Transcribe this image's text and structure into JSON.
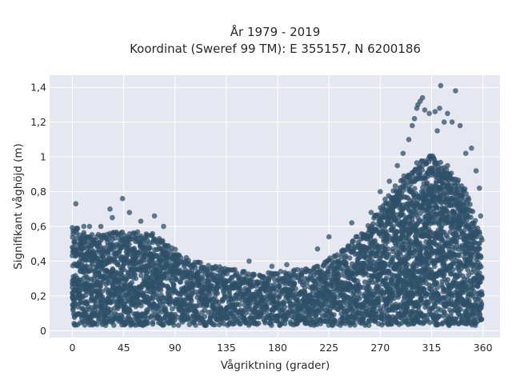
{
  "chart_data": {
    "type": "scatter",
    "title": "År 1979 - 2019",
    "subtitle": "Koordinat (Sweref 99 TM): E 355157, N 6200186",
    "xlabel": "Vågriktning (grader)",
    "ylabel": "Signifikant våghöjd (m)",
    "xlim": [
      -20,
      375
    ],
    "ylim": [
      -0.04,
      1.47
    ],
    "x_ticks": [
      0,
      45,
      90,
      135,
      180,
      225,
      270,
      315,
      360
    ],
    "x_tick_labels": [
      "0",
      "45",
      "90",
      "135",
      "180",
      "225",
      "270",
      "315",
      "360"
    ],
    "y_ticks": [
      0,
      0.2,
      0.4,
      0.6,
      0.8,
      1.0,
      1.2,
      1.4
    ],
    "y_tick_labels": [
      "0",
      "0,2",
      "0,4",
      "0,6",
      "0,8",
      "1",
      "1,2",
      "1,4"
    ],
    "grid": true,
    "background_color": "#e5e8f0",
    "grid_color": "#ffffff",
    "marker_color": "#2e5068",
    "dense_range": {
      "x": [
        0,
        360
      ],
      "y_min": 0.03
    },
    "upper_envelope": {
      "x": [
        0,
        20,
        45,
        70,
        90,
        100,
        135,
        160,
        180,
        210,
        240,
        260,
        280,
        300,
        315,
        330,
        345,
        360
      ],
      "y": [
        0.54,
        0.5,
        0.52,
        0.5,
        0.42,
        0.35,
        0.3,
        0.27,
        0.28,
        0.3,
        0.42,
        0.55,
        0.75,
        0.9,
        0.95,
        0.88,
        0.75,
        0.45
      ]
    },
    "outliers": [
      {
        "x": 3,
        "y": 0.73
      },
      {
        "x": 10,
        "y": 0.6
      },
      {
        "x": 15,
        "y": 0.6
      },
      {
        "x": 25,
        "y": 0.6
      },
      {
        "x": 33,
        "y": 0.7
      },
      {
        "x": 35,
        "y": 0.65
      },
      {
        "x": 44,
        "y": 0.76
      },
      {
        "x": 50,
        "y": 0.68
      },
      {
        "x": 60,
        "y": 0.63
      },
      {
        "x": 72,
        "y": 0.66
      },
      {
        "x": 80,
        "y": 0.6
      },
      {
        "x": 100,
        "y": 0.42
      },
      {
        "x": 130,
        "y": 0.34
      },
      {
        "x": 155,
        "y": 0.4
      },
      {
        "x": 175,
        "y": 0.37
      },
      {
        "x": 188,
        "y": 0.38
      },
      {
        "x": 215,
        "y": 0.47
      },
      {
        "x": 225,
        "y": 0.54
      },
      {
        "x": 245,
        "y": 0.62
      },
      {
        "x": 262,
        "y": 0.68
      },
      {
        "x": 270,
        "y": 0.8
      },
      {
        "x": 278,
        "y": 0.86
      },
      {
        "x": 285,
        "y": 0.95
      },
      {
        "x": 290,
        "y": 1.02
      },
      {
        "x": 295,
        "y": 1.1
      },
      {
        "x": 298,
        "y": 1.18
      },
      {
        "x": 300,
        "y": 1.22
      },
      {
        "x": 302,
        "y": 1.28
      },
      {
        "x": 303,
        "y": 1.3
      },
      {
        "x": 305,
        "y": 1.32
      },
      {
        "x": 307,
        "y": 1.34
      },
      {
        "x": 309,
        "y": 1.27
      },
      {
        "x": 313,
        "y": 1.25
      },
      {
        "x": 318,
        "y": 1.26
      },
      {
        "x": 320,
        "y": 1.15
      },
      {
        "x": 322,
        "y": 1.28
      },
      {
        "x": 323,
        "y": 1.41
      },
      {
        "x": 326,
        "y": 1.2
      },
      {
        "x": 329,
        "y": 1.25
      },
      {
        "x": 333,
        "y": 1.2
      },
      {
        "x": 336,
        "y": 1.38
      },
      {
        "x": 340,
        "y": 1.18
      },
      {
        "x": 345,
        "y": 1.02
      },
      {
        "x": 350,
        "y": 1.05
      },
      {
        "x": 354,
        "y": 0.92
      },
      {
        "x": 357,
        "y": 0.82
      },
      {
        "x": 358,
        "y": 0.66
      }
    ]
  }
}
